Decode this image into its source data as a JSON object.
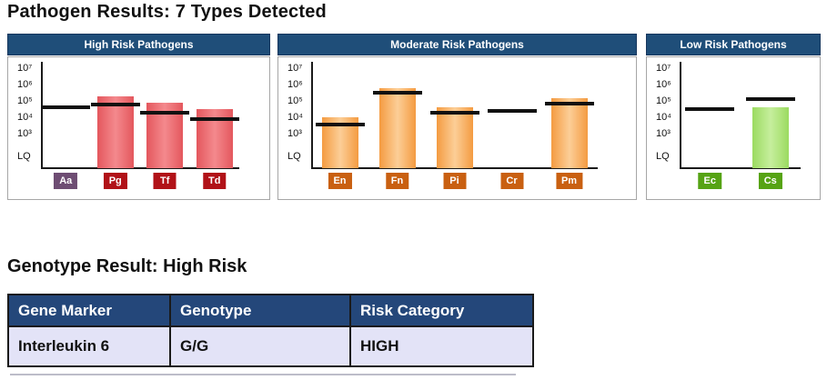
{
  "page": {
    "title": "Pathogen Results: 7 Types Detected",
    "genotype_heading": "Genotype Result: High Risk"
  },
  "colors": {
    "panel_header_bg": "#1F4E79",
    "table_header_bg": "#24477A",
    "table_row_bg": "#E3E3F7",
    "threshold_line": "#111111",
    "axis": "#1a1a1a"
  },
  "chart_data": [
    {
      "type": "bar",
      "title": "High Risk Pathogens",
      "scale": "log",
      "yticks": [
        "10⁷",
        "10⁶",
        "10⁵",
        "10⁴",
        "10³",
        "LQ"
      ],
      "ylim": [
        "LQ",
        10000000
      ],
      "categories": [
        "Aa",
        "Pg",
        "Tf",
        "Td"
      ],
      "values": [
        null,
        200000,
        80000,
        30000
      ],
      "thresholds": [
        40000,
        60000,
        20000,
        8000
      ],
      "bar_color": "#E4575D",
      "bar_color_light": "#F4898D",
      "badge_colors": [
        "#6E4D73",
        "#B11218",
        "#B11218",
        "#B11218"
      ]
    },
    {
      "type": "bar",
      "title": "Moderate Risk Pathogens",
      "scale": "log",
      "yticks": [
        "10⁷",
        "10⁶",
        "10⁵",
        "10⁴",
        "10³",
        "LQ"
      ],
      "ylim": [
        "LQ",
        10000000
      ],
      "categories": [
        "En",
        "Fn",
        "Pi",
        "Cr",
        "Pm"
      ],
      "values": [
        10000,
        600000,
        40000,
        null,
        150000
      ],
      "thresholds": [
        3500,
        300000,
        20000,
        25000,
        70000
      ],
      "bar_color": "#F49B41",
      "bar_color_light": "#FCCE97",
      "badge_colors": [
        "#C96011",
        "#C96011",
        "#C96011",
        "#C96011",
        "#C96011"
      ]
    },
    {
      "type": "bar",
      "title": "Low Risk Pathogens",
      "scale": "log",
      "yticks": [
        "10⁷",
        "10⁶",
        "10⁵",
        "10⁴",
        "10³",
        "LQ"
      ],
      "ylim": [
        "LQ",
        10000000
      ],
      "categories": [
        "Ec",
        "Cs"
      ],
      "values": [
        null,
        40000
      ],
      "thresholds": [
        30000,
        130000
      ],
      "bar_color": "#9BDB60",
      "bar_color_light": "#C6EE9D",
      "badge_colors": [
        "#56A314",
        "#56A314"
      ]
    }
  ],
  "genotype_table": {
    "headers": [
      "Gene Marker",
      "Genotype",
      "Risk Category"
    ],
    "rows": [
      [
        "Interleukin 6",
        "G/G",
        "HIGH"
      ]
    ]
  }
}
